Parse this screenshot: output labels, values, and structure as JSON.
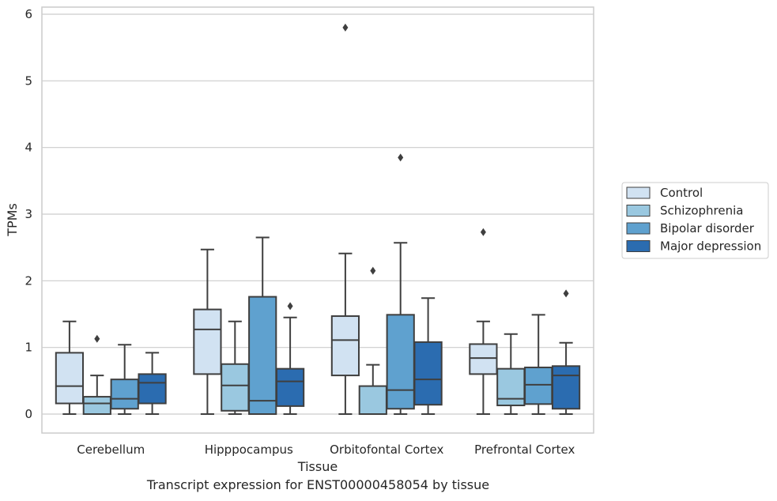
{
  "caption": "Transcript expression for ENST00000458054 by tissue",
  "chart_data": {
    "type": "box",
    "xlabel": "Tissue",
    "ylabel": "TPMs",
    "ylim": [
      -0.28,
      6.1
    ],
    "yticks": [
      0,
      1,
      2,
      3,
      4,
      5,
      6
    ],
    "grid": true,
    "legend_position": "right",
    "categories": [
      "Cerebellum",
      "Hipppocampus",
      "Orbitofontal Cortex",
      "Prefrontal Cortex"
    ],
    "series": [
      {
        "name": "Control",
        "color": "#d1e2f2",
        "boxes": [
          {
            "whisker_low": 0,
            "q1": 0.16,
            "median": 0.42,
            "q3": 0.92,
            "whisker_high": 1.39,
            "outliers": []
          },
          {
            "whisker_low": 0,
            "q1": 0.6,
            "median": 1.27,
            "q3": 1.57,
            "whisker_high": 2.47,
            "outliers": []
          },
          {
            "whisker_low": 0,
            "q1": 0.58,
            "median": 1.11,
            "q3": 1.47,
            "whisker_high": 2.41,
            "outliers": [
              5.8
            ]
          },
          {
            "whisker_low": 0,
            "q1": 0.6,
            "median": 0.84,
            "q3": 1.05,
            "whisker_high": 1.39,
            "outliers": [
              2.73
            ]
          }
        ]
      },
      {
        "name": "Schizophrenia",
        "color": "#9ac8e0",
        "boxes": [
          {
            "whisker_low": 0,
            "q1": 0,
            "median": 0.16,
            "q3": 0.26,
            "whisker_high": 0.58,
            "outliers": [
              1.13
            ]
          },
          {
            "whisker_low": 0,
            "q1": 0.05,
            "median": 0.43,
            "q3": 0.75,
            "whisker_high": 1.39,
            "outliers": []
          },
          {
            "whisker_low": 0,
            "q1": 0,
            "median": 0,
            "q3": 0.42,
            "whisker_high": 0.74,
            "outliers": [
              2.15
            ]
          },
          {
            "whisker_low": 0,
            "q1": 0.13,
            "median": 0.23,
            "q3": 0.68,
            "whisker_high": 1.2,
            "outliers": []
          }
        ]
      },
      {
        "name": "Bipolar disorder",
        "color": "#5fa1cf",
        "boxes": [
          {
            "whisker_low": 0,
            "q1": 0.08,
            "median": 0.23,
            "q3": 0.52,
            "whisker_high": 1.04,
            "outliers": []
          },
          {
            "whisker_low": 0,
            "q1": 0,
            "median": 0.2,
            "q3": 1.76,
            "whisker_high": 2.65,
            "outliers": []
          },
          {
            "whisker_low": 0,
            "q1": 0.08,
            "median": 0.36,
            "q3": 1.49,
            "whisker_high": 2.57,
            "outliers": [
              3.85
            ]
          },
          {
            "whisker_low": 0,
            "q1": 0.15,
            "median": 0.44,
            "q3": 0.7,
            "whisker_high": 1.49,
            "outliers": []
          }
        ]
      },
      {
        "name": "Major depression",
        "color": "#2b6cb0",
        "boxes": [
          {
            "whisker_low": 0,
            "q1": 0.16,
            "median": 0.47,
            "q3": 0.6,
            "whisker_high": 0.92,
            "outliers": []
          },
          {
            "whisker_low": 0,
            "q1": 0.12,
            "median": 0.49,
            "q3": 0.68,
            "whisker_high": 1.45,
            "outliers": [
              1.62
            ]
          },
          {
            "whisker_low": 0,
            "q1": 0.14,
            "median": 0.52,
            "q3": 1.08,
            "whisker_high": 1.74,
            "outliers": []
          },
          {
            "whisker_low": 0,
            "q1": 0.08,
            "median": 0.58,
            "q3": 0.72,
            "whisker_high": 1.07,
            "outliers": [
              1.81
            ]
          }
        ]
      }
    ]
  }
}
